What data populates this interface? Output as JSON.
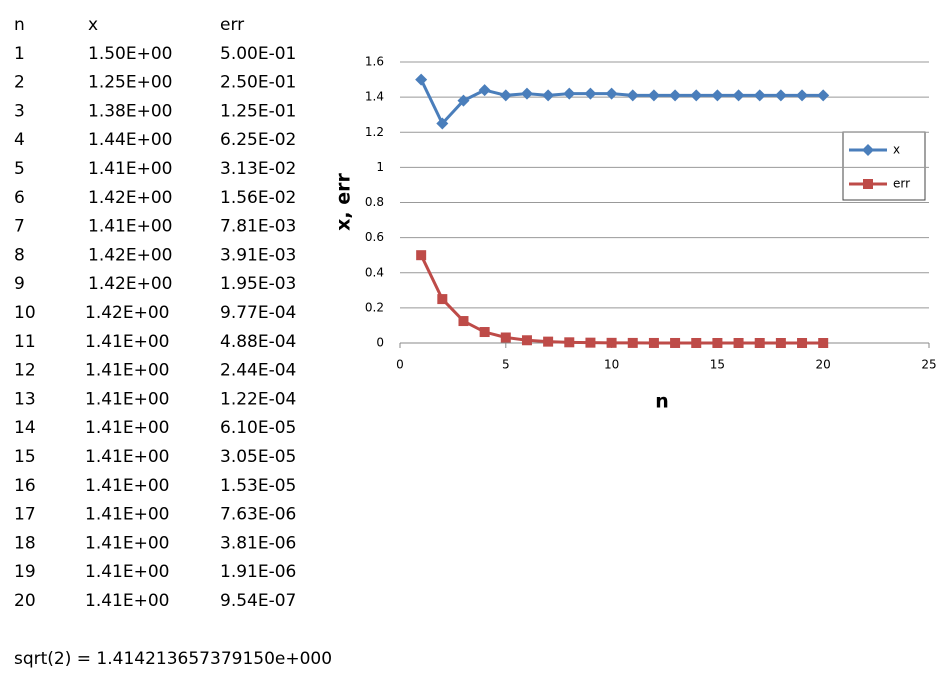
{
  "table": {
    "header": [
      "n",
      "x",
      "err"
    ],
    "rows": [
      [
        "1",
        "1.50E+00",
        "5.00E-01"
      ],
      [
        "2",
        "1.25E+00",
        "2.50E-01"
      ],
      [
        "3",
        "1.38E+00",
        "1.25E-01"
      ],
      [
        "4",
        "1.44E+00",
        "6.25E-02"
      ],
      [
        "5",
        "1.41E+00",
        "3.13E-02"
      ],
      [
        "6",
        "1.42E+00",
        "1.56E-02"
      ],
      [
        "7",
        "1.41E+00",
        "7.81E-03"
      ],
      [
        "8",
        "1.42E+00",
        "3.91E-03"
      ],
      [
        "9",
        "1.42E+00",
        "1.95E-03"
      ],
      [
        "10",
        "1.42E+00",
        "9.77E-04"
      ],
      [
        "11",
        "1.41E+00",
        "4.88E-04"
      ],
      [
        "12",
        "1.41E+00",
        "2.44E-04"
      ],
      [
        "13",
        "1.41E+00",
        "1.22E-04"
      ],
      [
        "14",
        "1.41E+00",
        "6.10E-05"
      ],
      [
        "15",
        "1.41E+00",
        "3.05E-05"
      ],
      [
        "16",
        "1.41E+00",
        "1.53E-05"
      ],
      [
        "17",
        "1.41E+00",
        "7.63E-06"
      ],
      [
        "18",
        "1.41E+00",
        "3.81E-06"
      ],
      [
        "19",
        "1.41E+00",
        "1.91E-06"
      ],
      [
        "20",
        "1.41E+00",
        "9.54E-07"
      ]
    ]
  },
  "note": "sqrt(2) = 1.414213657379150e+000",
  "chart_data": {
    "type": "line",
    "x_label": "n",
    "y_label": "x, err",
    "x": [
      1,
      2,
      3,
      4,
      5,
      6,
      7,
      8,
      9,
      10,
      11,
      12,
      13,
      14,
      15,
      16,
      17,
      18,
      19,
      20
    ],
    "series": [
      {
        "name": "x",
        "color": "#4a7ebb",
        "marker": "diamond",
        "values": [
          1.5,
          1.25,
          1.38,
          1.44,
          1.41,
          1.42,
          1.41,
          1.42,
          1.42,
          1.42,
          1.41,
          1.41,
          1.41,
          1.41,
          1.41,
          1.41,
          1.41,
          1.41,
          1.41,
          1.41
        ]
      },
      {
        "name": "err",
        "color": "#be4b48",
        "marker": "square",
        "values": [
          0.5,
          0.25,
          0.125,
          0.0625,
          0.0313,
          0.0156,
          0.00781,
          0.00391,
          0.00195,
          0.000977,
          0.000488,
          0.000244,
          0.000122,
          6.1e-05,
          3.05e-05,
          1.53e-05,
          7.63e-06,
          3.81e-06,
          1.91e-06,
          9.54e-07
        ]
      }
    ],
    "xlim": [
      0,
      25
    ],
    "xticks": [
      0,
      5,
      10,
      15,
      20,
      25
    ],
    "ylim": [
      0,
      1.6
    ],
    "yticks": [
      0,
      0.2,
      0.4,
      0.6,
      0.8,
      1,
      1.2,
      1.4,
      1.6
    ],
    "grid": true,
    "legend": "right"
  }
}
